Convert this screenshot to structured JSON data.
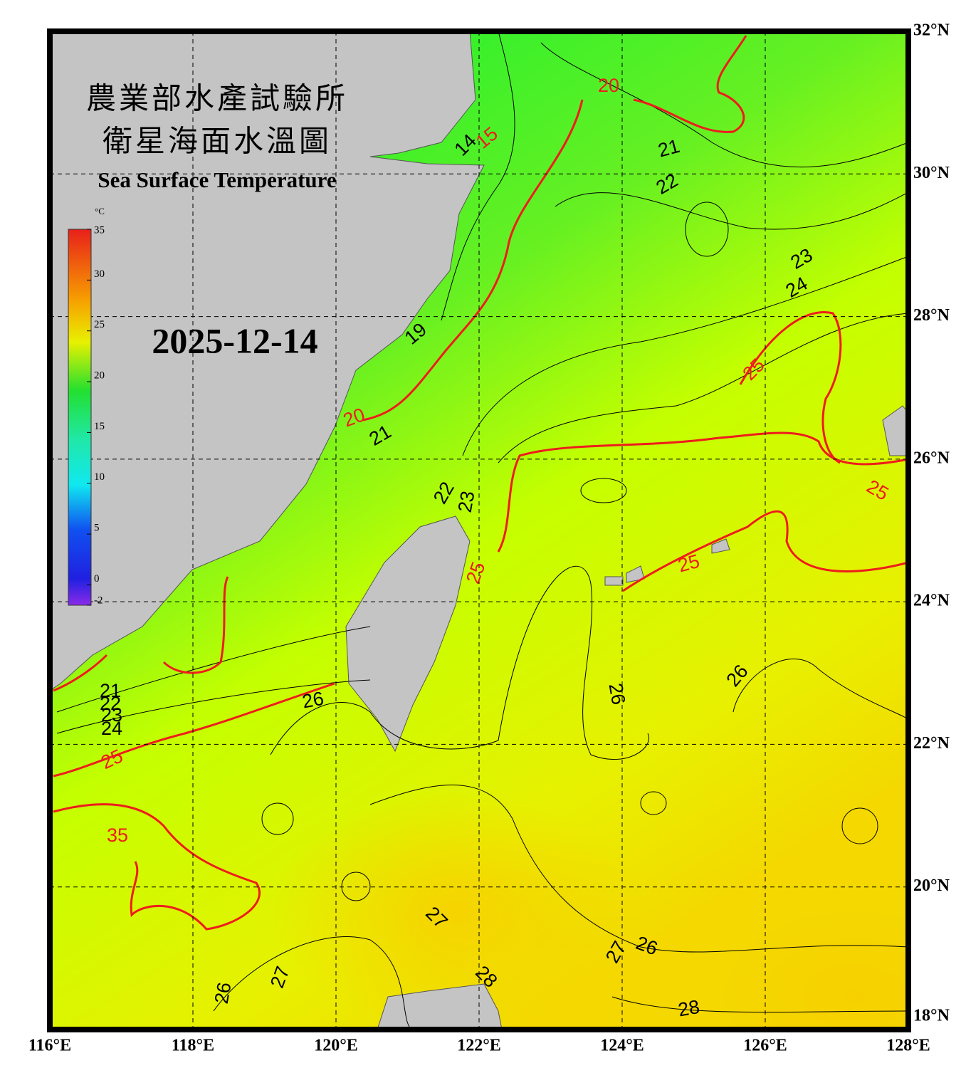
{
  "header": {
    "title_zh_1": "農業部水產試驗所",
    "title_zh_2": "衛星海面水溫圖",
    "title_en": "Sea Surface Temperature",
    "date": "2025-12-14"
  },
  "colorbar": {
    "unit": "°C",
    "lim": [
      -2,
      35
    ],
    "ticks": [
      35,
      30,
      25,
      20,
      15,
      10,
      5,
      0,
      -2
    ]
  },
  "lat_labels": [
    "32°N",
    "30°N",
    "28°N",
    "26°N",
    "24°N",
    "22°N",
    "20°N",
    "18°N"
  ],
  "lon_labels": [
    "116°E",
    "118°E",
    "120°E",
    "122°E",
    "124°E",
    "126°E",
    "128°E"
  ],
  "contour_labels": [
    "14",
    "15",
    "19",
    "20",
    "20",
    "21",
    "21",
    "22",
    "22",
    "23",
    "23",
    "24",
    "25",
    "25",
    "25",
    "25",
    "25",
    "35",
    "26",
    "26",
    "26",
    "26",
    "26",
    "27",
    "27",
    "27",
    "28",
    "28",
    "21",
    "22",
    "23",
    "24"
  ]
}
